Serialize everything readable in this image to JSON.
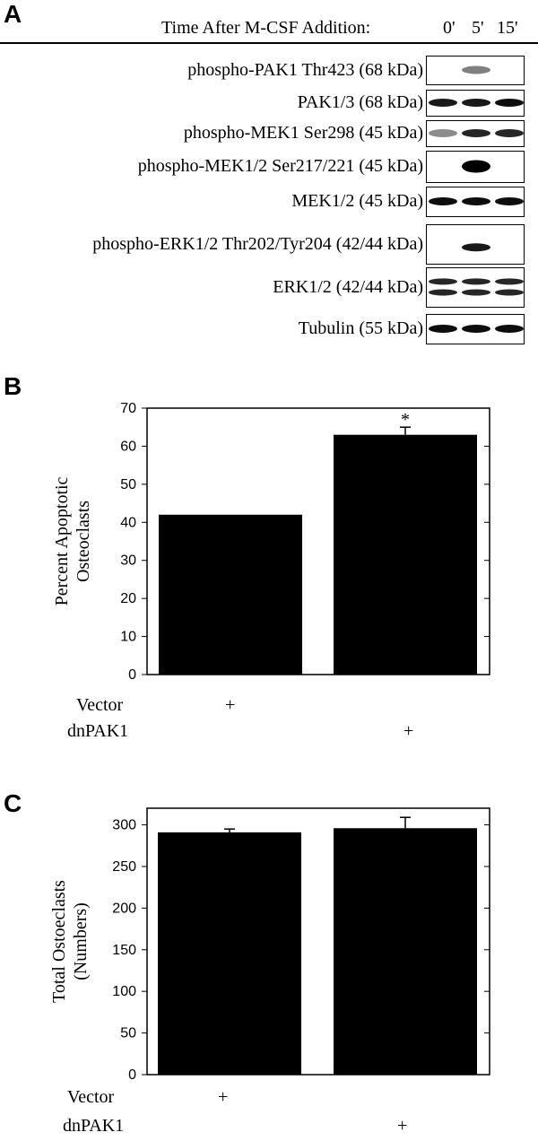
{
  "panel_a": {
    "letter": "A",
    "header": "Time After M-CSF Addition:",
    "time_points": [
      "0'",
      "5'",
      "15'"
    ],
    "blots": [
      {
        "label": "phospho-PAK1 Thr423 (68 kDa)",
        "bands": [
          0,
          0.5,
          0
        ]
      },
      {
        "label": "PAK1/3 (68 kDa)",
        "bands": [
          0.9,
          0.9,
          0.95
        ]
      },
      {
        "label": "phospho-MEK1 Ser298 (45 kDa)",
        "bands": [
          0.45,
          0.85,
          0.85
        ]
      },
      {
        "label": "phospho-MEK1/2 Ser217/221 (45 kDa)",
        "bands": [
          0,
          1,
          0
        ]
      },
      {
        "label": "MEK1/2 (45 kDa)",
        "bands": [
          0.95,
          0.95,
          0.95
        ]
      },
      {
        "label": "phospho-ERK1/2 Thr202/Tyr204 (42/44 kDa)",
        "bands": [
          0,
          0.9,
          0
        ]
      },
      {
        "label": "ERK1/2 (42/44 kDa)",
        "bands": [
          0.85,
          0.85,
          0.85
        ]
      },
      {
        "label": "Tubulin (55 kDa)",
        "bands": [
          0.95,
          0.95,
          0.95
        ]
      }
    ]
  },
  "panel_b": {
    "letter": "B",
    "conditions": [
      {
        "label": "Vector",
        "marks": [
          "+",
          ""
        ]
      },
      {
        "label": "dnPAK1",
        "marks": [
          "",
          "+"
        ]
      }
    ]
  },
  "panel_c": {
    "letter": "C",
    "conditions": [
      {
        "label": "Vector",
        "marks": [
          "+",
          ""
        ]
      },
      {
        "label": "dnPAK1",
        "marks": [
          "",
          "+"
        ]
      }
    ]
  },
  "chart_data": [
    {
      "type": "bar",
      "ylabel": "Percent Apoptotic Osteoclasts",
      "ylabel_lines": [
        "Percent Apoptotic",
        "Osteoclasts"
      ],
      "categories": [
        "Vector",
        "dnPAK1"
      ],
      "values": [
        42,
        63
      ],
      "errors": [
        0,
        2
      ],
      "annotations": [
        "",
        "*"
      ],
      "ylim": [
        0,
        70
      ],
      "yticks": [
        "0",
        "10",
        "20",
        "30",
        "40",
        "50",
        "60",
        "70"
      ]
    },
    {
      "type": "bar",
      "ylabel": "Total Ostoeclasts (Numbers)",
      "ylabel_lines": [
        "Total Ostoeclasts",
        "(Numbers)"
      ],
      "categories": [
        "Vector",
        "dnPAK1"
      ],
      "values": [
        291,
        296
      ],
      "errors": [
        4,
        13
      ],
      "annotations": [
        "",
        ""
      ],
      "ylim": [
        0,
        320
      ],
      "yticks": [
        "0",
        "50",
        "100",
        "150",
        "200",
        "250",
        "300"
      ]
    }
  ]
}
